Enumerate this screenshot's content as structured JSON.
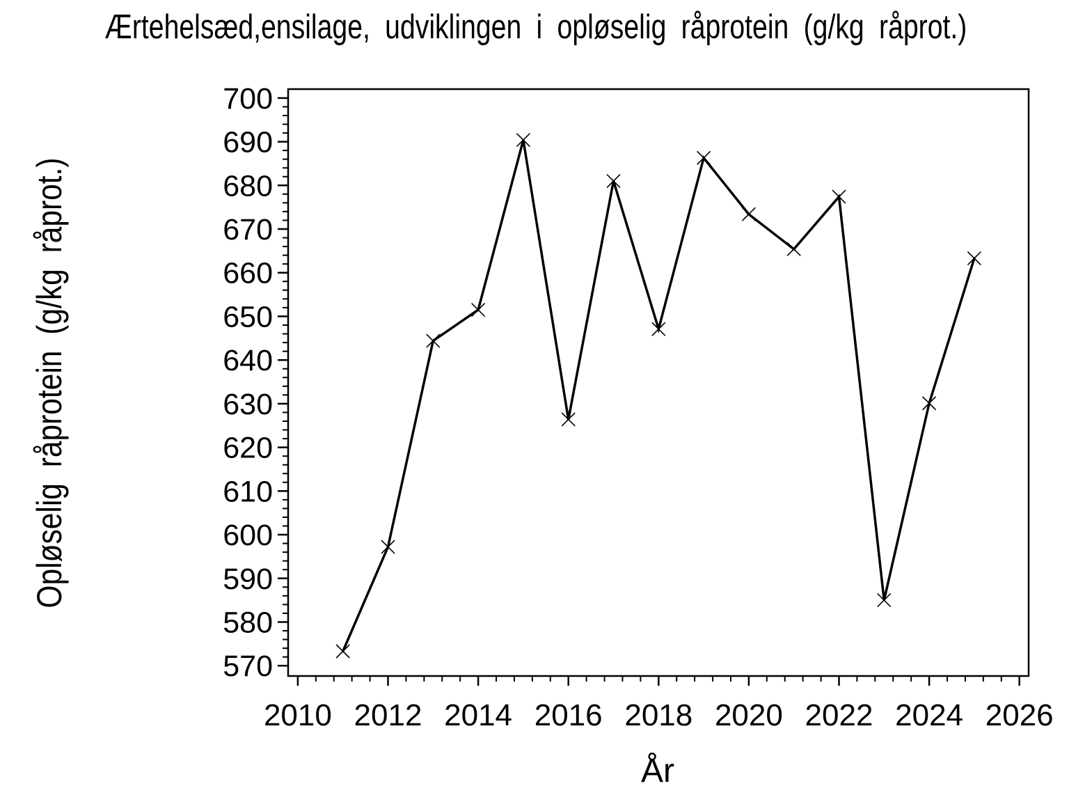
{
  "page": {
    "background_color": "#ffffff",
    "foreground_color": "#000000"
  },
  "chart_data": {
    "type": "line",
    "title": "Ærtehelsæd,ensilage, udviklingen i opløselig råprotein (g/kg råprot.)",
    "xlabel": "År",
    "ylabel": "Opløselig råprotein (g/kg råprot.)",
    "x": [
      2011,
      2012,
      2013,
      2014,
      2015,
      2016,
      2017,
      2018,
      2019,
      2020,
      2021,
      2022,
      2023,
      2024,
      2025
    ],
    "values": [
      573.3,
      597.2,
      644.4,
      651.5,
      690.4,
      626.4,
      681.0,
      647.1,
      686.3,
      673.4,
      665.4,
      677.4,
      585.0,
      630.1,
      663.3
    ],
    "marker": "x",
    "marker_color": "#000000",
    "line_color": "#000000",
    "xlim": [
      2009.8,
      2026.3
    ],
    "ylim": [
      567.5,
      702.0
    ],
    "x_major_ticks": [
      2010,
      2012,
      2014,
      2016,
      2018,
      2020,
      2022,
      2024,
      2026
    ],
    "y_major_ticks": [
      570,
      580,
      590,
      600,
      610,
      620,
      630,
      640,
      650,
      660,
      670,
      680,
      690,
      700
    ],
    "x_minor_step": 0.4,
    "y_minor_step": 2,
    "grid": false,
    "legend": "none"
  }
}
